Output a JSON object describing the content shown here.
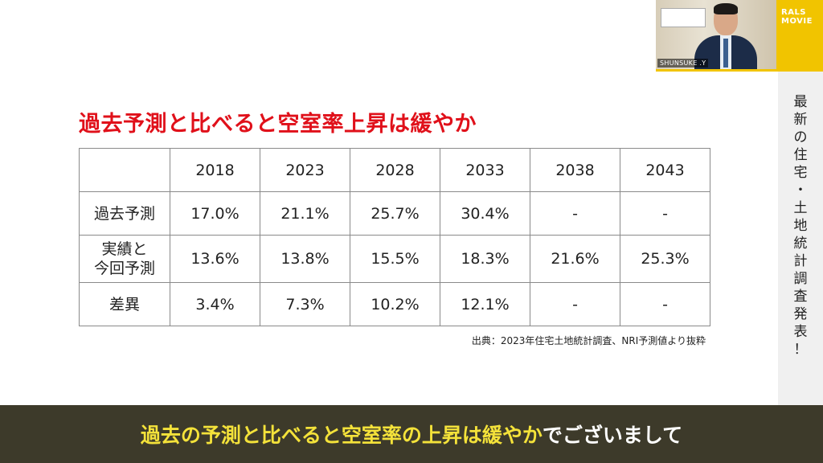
{
  "slide": {
    "title": "過去予測と比べると空室率上昇は緩やか",
    "source_note": "出典：2023年住宅土地統計調査、NRI予測値より抜粋"
  },
  "table": {
    "years": [
      "2018",
      "2023",
      "2028",
      "2033",
      "2038",
      "2043"
    ],
    "rows": [
      {
        "label_line1": "過去予測",
        "label_line2": "",
        "values": [
          "17.0%",
          "21.1%",
          "25.7%",
          "30.4%",
          "-",
          "-"
        ]
      },
      {
        "label_line1": "実績と",
        "label_line2": "今回予測",
        "values": [
          "13.6%",
          "13.8%",
          "15.5%",
          "18.3%",
          "21.6%",
          "25.3%"
        ]
      },
      {
        "label_line1": "差異",
        "label_line2": "",
        "values": [
          "3.4%",
          "7.3%",
          "10.2%",
          "12.1%",
          "-",
          "-"
        ]
      }
    ],
    "highlight_color": "#e0101a"
  },
  "side_panel": {
    "chars": [
      "最",
      "新",
      "の",
      "住",
      "宅",
      "・",
      "土",
      "地",
      "統",
      "計",
      "調",
      "査",
      "発",
      "表",
      "！"
    ]
  },
  "webcam": {
    "name_tag": "SHUNSUKE .Y"
  },
  "logo": {
    "line1": "RALS",
    "line2": "MOVIE",
    "color": "#f1c400"
  },
  "subtitle": {
    "highlight": "過去の予測と比べると空室率の上昇は緩やか",
    "rest": "でございまして"
  }
}
